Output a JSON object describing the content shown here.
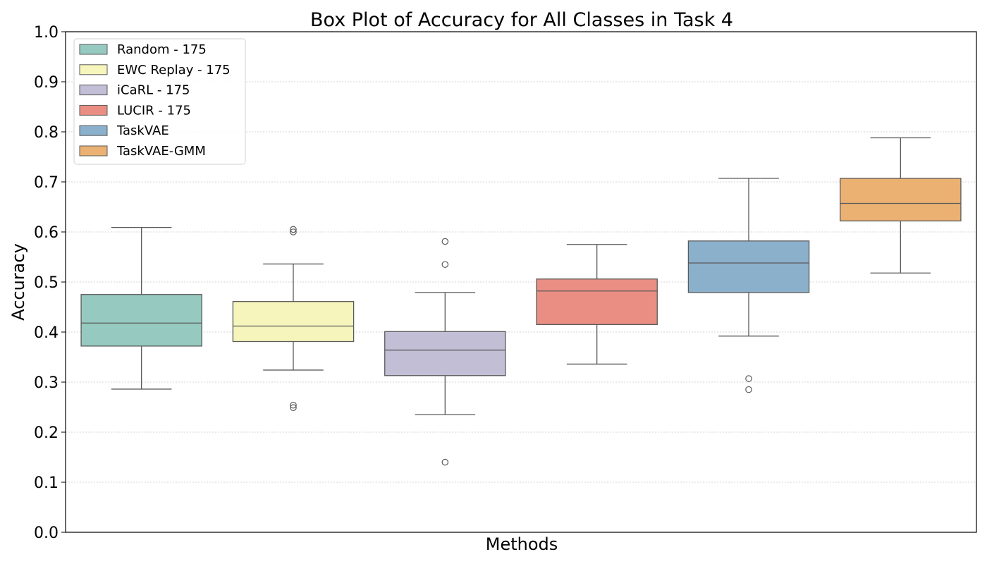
{
  "chart_data": {
    "type": "box",
    "title": "Box Plot of Accuracy for All Classes in Task 4",
    "xlabel": "Methods",
    "ylabel": "Accuracy",
    "ylim": [
      0.0,
      1.0
    ],
    "yticks": [
      "0.0",
      "0.1",
      "0.2",
      "0.3",
      "0.4",
      "0.5",
      "0.6",
      "0.7",
      "0.8",
      "0.9",
      "1.0"
    ],
    "grid": "horizontal dotted",
    "legend_position": "top-left",
    "series": [
      {
        "name": "Random - 175",
        "color": "#96cac1",
        "whisker_low": 0.286,
        "q1": 0.372,
        "median": 0.418,
        "q3": 0.475,
        "whisker_high": 0.609,
        "outliers": []
      },
      {
        "name": "EWC Replay - 175",
        "color": "#f6f6bc",
        "whisker_low": 0.324,
        "q1": 0.381,
        "median": 0.412,
        "q3": 0.461,
        "whisker_high": 0.536,
        "outliers": [
          0.605,
          0.6,
          0.254,
          0.249
        ]
      },
      {
        "name": "iCaRL - 175",
        "color": "#c1bed6",
        "whisker_low": 0.235,
        "q1": 0.313,
        "median": 0.364,
        "q3": 0.401,
        "whisker_high": 0.479,
        "outliers": [
          0.581,
          0.535,
          0.14
        ]
      },
      {
        "name": "LUCIR - 175",
        "color": "#ea8e83",
        "whisker_low": 0.336,
        "q1": 0.415,
        "median": 0.482,
        "q3": 0.506,
        "whisker_high": 0.575,
        "outliers": []
      },
      {
        "name": "TaskVAE",
        "color": "#8bb0cc",
        "whisker_low": 0.392,
        "q1": 0.479,
        "median": 0.538,
        "q3": 0.582,
        "whisker_high": 0.707,
        "outliers": [
          0.307,
          0.285
        ]
      },
      {
        "name": "TaskVAE-GMM",
        "color": "#ebb172",
        "whisker_low": 0.518,
        "q1": 0.622,
        "median": 0.657,
        "q3": 0.707,
        "whisker_high": 0.788,
        "outliers": []
      }
    ]
  }
}
